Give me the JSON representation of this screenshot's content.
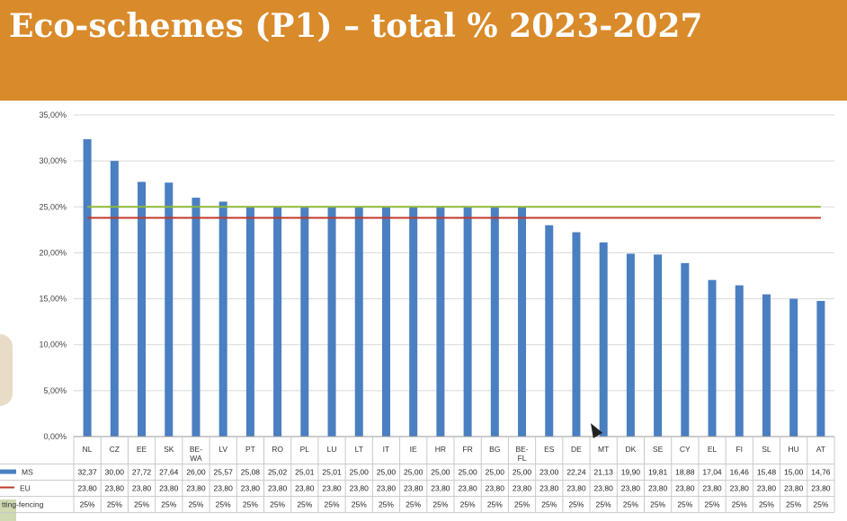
{
  "slide": {
    "title": "Eco-schemes (P1) – total % 2023-2027"
  },
  "chart_data": {
    "type": "bar",
    "title": "",
    "xlabel": "",
    "ylabel": "",
    "ylim": [
      0,
      35
    ],
    "yticks": [
      "0,00%",
      "5,00%",
      "10,00%",
      "15,00%",
      "20,00%",
      "25,00%",
      "30,00%",
      "35,00%"
    ],
    "grid": true,
    "categories": [
      "NL",
      "CZ",
      "EE",
      "SK",
      "BE-WA",
      "LV",
      "PT",
      "RO",
      "PL",
      "LU",
      "LT",
      "IT",
      "IE",
      "HR",
      "FR",
      "BG",
      "BE-FL",
      "ES",
      "DE",
      "MT",
      "DK",
      "SE",
      "CY",
      "EL",
      "FI",
      "SL",
      "HU",
      "AT"
    ],
    "series": [
      {
        "name": "MS",
        "kind": "bar",
        "color": "#4a7fc1",
        "values": [
          32.37,
          30.0,
          27.72,
          27.64,
          26.0,
          25.57,
          25.08,
          25.02,
          25.01,
          25.01,
          25.0,
          25.0,
          25.0,
          25.0,
          25.0,
          25.0,
          25.0,
          23.0,
          22.24,
          21.13,
          19.9,
          19.81,
          18.88,
          17.04,
          16.46,
          15.48,
          15.0,
          14.76
        ],
        "labels": [
          "32,37",
          "30,00",
          "27,72",
          "27,64",
          "26,00",
          "25,57",
          "25,08",
          "25,02",
          "25,01",
          "25,01",
          "25,00",
          "25,00",
          "25,00",
          "25,00",
          "25,00",
          "25,00",
          "25,00",
          "23,00",
          "22,24",
          "21,13",
          "19,90",
          "19,81",
          "18,88",
          "17,04",
          "16,46",
          "15,48",
          "15,00",
          "14,76"
        ]
      },
      {
        "name": "EU",
        "kind": "line",
        "color": "#c0392b",
        "values": [
          23.8,
          23.8,
          23.8,
          23.8,
          23.8,
          23.8,
          23.8,
          23.8,
          23.8,
          23.8,
          23.8,
          23.8,
          23.8,
          23.8,
          23.8,
          23.8,
          23.8,
          23.8,
          23.8,
          23.8,
          23.8,
          23.8,
          23.8,
          23.8,
          23.8,
          23.8,
          23.8,
          23.8
        ],
        "labels": [
          "23,80",
          "23,80",
          "23,80",
          "23,80",
          "23,80",
          "23,80",
          "23,80",
          "23,80",
          "23,80",
          "23,80",
          "23,80",
          "23,80",
          "23,80",
          "23,80",
          "23,80",
          "23,80",
          "23,80",
          "23,80",
          "23,80",
          "23,80",
          "23,80",
          "23,80",
          "23,80",
          "23,80",
          "23,80",
          "23,80",
          "23,80",
          "23,80"
        ]
      },
      {
        "name": "tting-fencing",
        "kind": "line",
        "color": "#8fb83a",
        "values": [
          25,
          25,
          25,
          25,
          25,
          25,
          25,
          25,
          25,
          25,
          25,
          25,
          25,
          25,
          25,
          25,
          25,
          25,
          25,
          25,
          25,
          25,
          25,
          25,
          25,
          25,
          25,
          25
        ],
        "labels": [
          "25%",
          "25%",
          "25%",
          "25%",
          "25%",
          "25%",
          "25%",
          "25%",
          "25%",
          "25%",
          "25%",
          "25%",
          "25%",
          "25%",
          "25%",
          "25%",
          "25%",
          "25%",
          "25%",
          "25%",
          "25%",
          "25%",
          "25%",
          "25%",
          "25%",
          "25%",
          "25%",
          "25%"
        ]
      }
    ]
  }
}
